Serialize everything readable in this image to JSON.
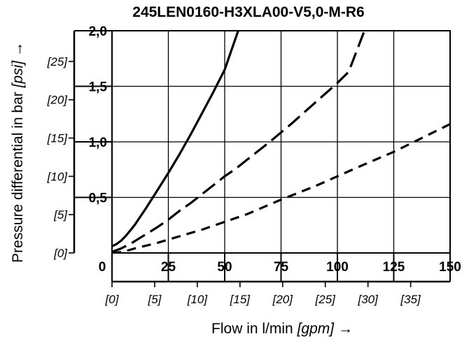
{
  "chart_data": {
    "type": "line",
    "title": "245LEN0160-H3XLA00-V5,0-M-R6",
    "xlabel_prefix": "Flow in l/min",
    "xlabel_unit": "[gpm]",
    "xlabel_arrow": "→",
    "ylabel_prefix": "Pressure differential in bar",
    "ylabel_unit": "[psi]",
    "ylabel_arrow": "→",
    "xlim": [
      0,
      150
    ],
    "ylim": [
      0,
      2.0
    ],
    "x_ticks": [
      "0",
      "25",
      "50",
      "75",
      "100",
      "125",
      "150"
    ],
    "y_ticks": [
      "0,5",
      "1,0",
      "1,5",
      "2,0"
    ],
    "x_secondary_ticks": [
      {
        "value": 0,
        "label": "[0]"
      },
      {
        "value": 5,
        "label": "[5]"
      },
      {
        "value": 10,
        "label": "[10]"
      },
      {
        "value": 15,
        "label": "[15]"
      },
      {
        "value": 20,
        "label": "[20]"
      },
      {
        "value": 25,
        "label": "[25]"
      },
      {
        "value": 30,
        "label": "[30]"
      },
      {
        "value": 35,
        "label": "[35]"
      }
    ],
    "y_secondary_ticks": [
      {
        "value": 0,
        "label": "[0]"
      },
      {
        "value": 5,
        "label": "[5]"
      },
      {
        "value": 10,
        "label": "[10]"
      },
      {
        "value": 15,
        "label": "[15]"
      },
      {
        "value": 20,
        "label": "[20]"
      },
      {
        "value": 25,
        "label": "[25]"
      }
    ],
    "grid": true,
    "series": [
      {
        "style": "solid",
        "x": [
          0,
          2,
          4,
          6,
          8,
          10,
          12,
          15,
          20,
          25,
          30,
          35,
          40,
          45,
          50,
          56
        ],
        "y": [
          0.06,
          0.08,
          0.11,
          0.15,
          0.2,
          0.25,
          0.31,
          0.4,
          0.56,
          0.72,
          0.89,
          1.07,
          1.26,
          1.45,
          1.65,
          2.0
        ]
      },
      {
        "style": "long-dash",
        "x": [
          0,
          4,
          8,
          12,
          16,
          20,
          25,
          30,
          35,
          40,
          45,
          50,
          55,
          60,
          70,
          80,
          90,
          100,
          105,
          112
        ],
        "y": [
          0.01,
          0.04,
          0.08,
          0.13,
          0.18,
          0.23,
          0.3,
          0.38,
          0.45,
          0.53,
          0.61,
          0.69,
          0.76,
          0.84,
          1.0,
          1.17,
          1.35,
          1.53,
          1.63,
          2.0
        ]
      },
      {
        "style": "short-dash",
        "x": [
          0,
          5,
          10,
          20,
          30,
          40,
          50,
          60,
          75,
          90,
          100,
          110,
          125,
          135,
          150
        ],
        "y": [
          0.0,
          0.01,
          0.04,
          0.09,
          0.15,
          0.21,
          0.28,
          0.35,
          0.48,
          0.6,
          0.69,
          0.78,
          0.91,
          1.01,
          1.16
        ]
      }
    ]
  }
}
